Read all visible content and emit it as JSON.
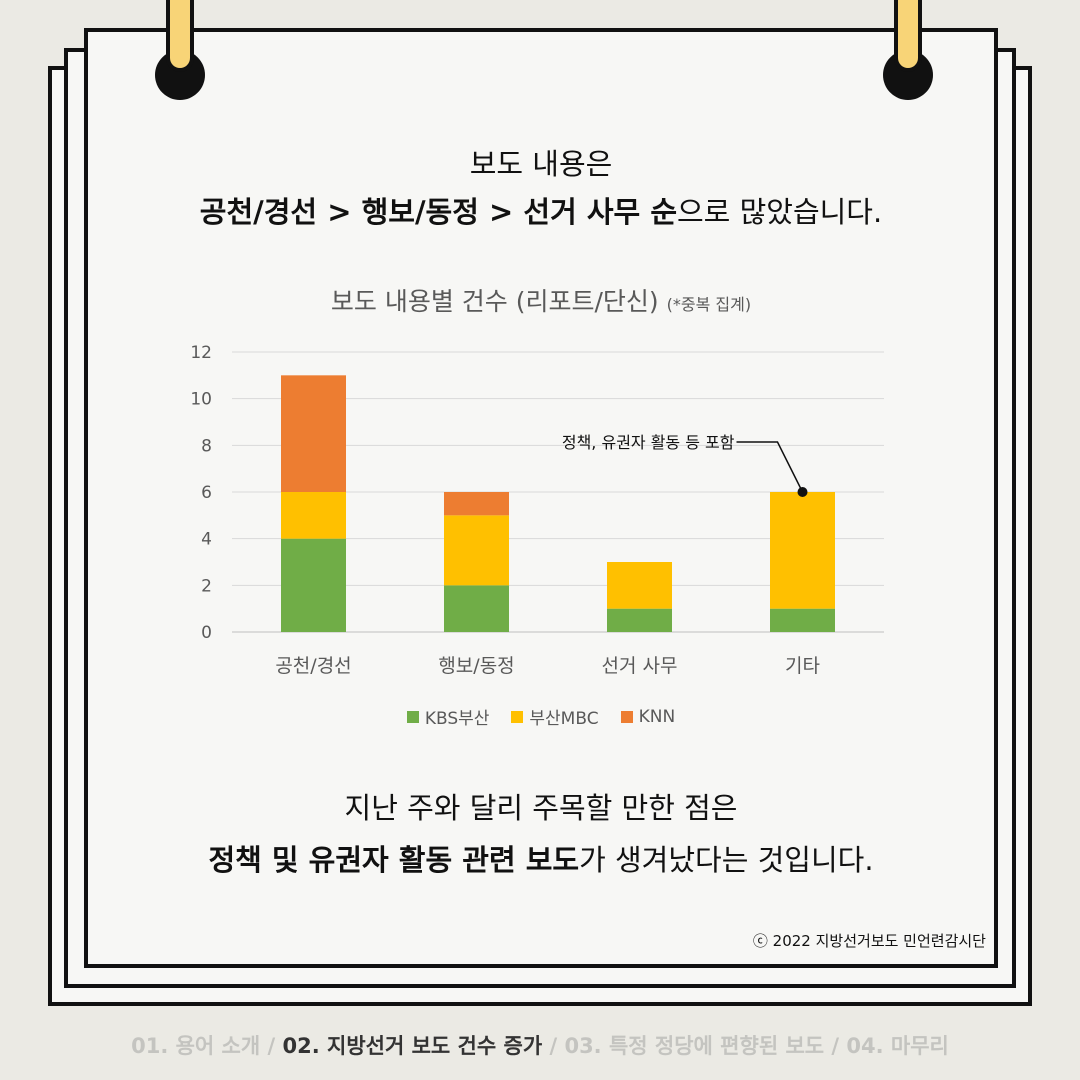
{
  "headline": {
    "line1": "보도 내용은",
    "line2_bold": "공천/경선 > 행보/동정 > 선거 사무 순",
    "line2_rest": "으로 많았습니다."
  },
  "chart_data": {
    "type": "bar",
    "stacked": true,
    "title": "보도 내용별 건수 (리포트/단신)",
    "title_note": "(*중복 집계)",
    "categories": [
      "공천/경선",
      "행보/동정",
      "선거 사무",
      "기타"
    ],
    "series": [
      {
        "name": "KBS부산",
        "color": "#70ad47",
        "values": [
          4,
          2,
          1,
          1
        ]
      },
      {
        "name": "부산MBC",
        "color": "#ffc000",
        "values": [
          2,
          3,
          2,
          5
        ]
      },
      {
        "name": "KNN",
        "color": "#ed7d31",
        "values": [
          5,
          1,
          0,
          0
        ]
      }
    ],
    "ylim": [
      0,
      12
    ],
    "yticks": [
      0,
      2,
      4,
      6,
      8,
      10,
      12
    ],
    "grid": true,
    "legend": "bottom",
    "annotation": {
      "text": "정책, 유권자 활동 등 포함",
      "category": "기타",
      "value": 6
    }
  },
  "body": {
    "line1": "지난 주와 달리 주목할 만한 점은",
    "line2_bold": "정책 및 유권자 활동 관련 보도",
    "line2_rest": "가 생겨났다는 것입니다."
  },
  "copyright": "ⓒ 2022 지방선거보도 민언련감시단",
  "footer_nav": [
    {
      "label": "01. 용어 소개",
      "active": false
    },
    {
      "label": "02. 지방선거 보도 건수 증가",
      "active": true
    },
    {
      "label": "03. 특정 정당에 편향된 보도",
      "active": false
    },
    {
      "label": "04. 마무리",
      "active": false
    }
  ]
}
